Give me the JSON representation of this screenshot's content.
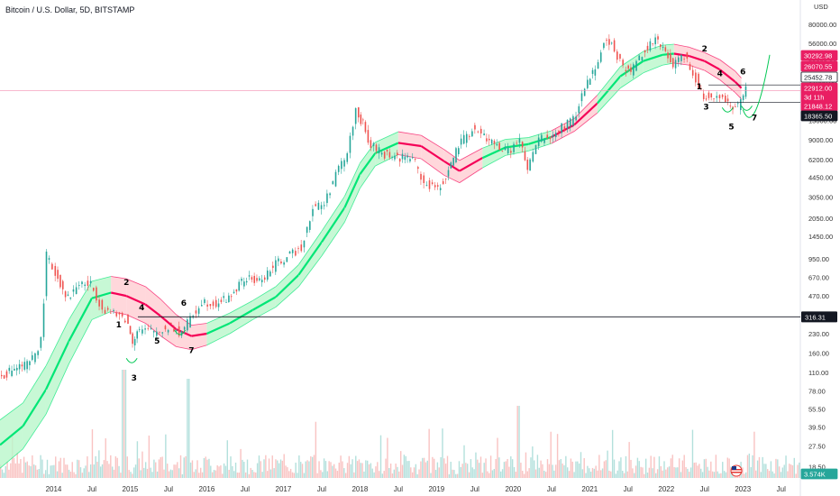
{
  "header": {
    "title": "Bitcoin / U.S. Dollar, 5D, BITSTAMP"
  },
  "colors": {
    "up_candle": "#26a69a",
    "down_candle": "#ef5350",
    "band_green": "#00e676",
    "band_red": "#f50057",
    "band_green_fill": "#b9f6ca",
    "band_red_fill": "#ffcdd2",
    "price_badge_red": "#e91e63",
    "price_badge_black": "#131722",
    "volume_badge": "#26a69a",
    "last_price_line": "#f48fb1"
  },
  "chart_data": {
    "type": "line",
    "symbol": "BTCUSD",
    "exchange": "BITSTAMP",
    "interval": "5D",
    "y_scale": "log",
    "y_unit": "USD",
    "y_ticks": [
      "80000.00",
      "56000.00",
      "39000.00",
      "27000.00",
      "13000.00",
      "9000.00",
      "6200.00",
      "4450.00",
      "3050.00",
      "2050.00",
      "1450.00",
      "950.00",
      "670.00",
      "470.00",
      "230.00",
      "160.00",
      "110.00",
      "78.00",
      "55.50",
      "39.50",
      "27.50",
      "18.50"
    ],
    "x_ticks": [
      "2014",
      "Jul",
      "2015",
      "Jul",
      "2016",
      "Jul",
      "2017",
      "Jul",
      "2018",
      "Jul",
      "2019",
      "Jul",
      "2020",
      "Jul",
      "2021",
      "Jul",
      "2022",
      "Jul",
      "2023",
      "Jul"
    ],
    "price_series": {
      "name": "BTCUSD",
      "x": [
        2013.3,
        2013.5,
        2013.7,
        2013.85,
        2013.92,
        2014.0,
        2014.1,
        2014.2,
        2014.35,
        2014.5,
        2014.65,
        2014.8,
        2014.95,
        2015.04,
        2015.1,
        2015.25,
        2015.4,
        2015.55,
        2015.65,
        2015.8,
        2015.95,
        2016.1,
        2016.3,
        2016.5,
        2016.7,
        2016.95,
        2017.1,
        2017.25,
        2017.4,
        2017.55,
        2017.7,
        2017.85,
        2017.96,
        2018.05,
        2018.12,
        2018.3,
        2018.5,
        2018.7,
        2018.85,
        2018.96,
        2019.1,
        2019.3,
        2019.48,
        2019.6,
        2019.8,
        2019.95,
        2020.1,
        2020.2,
        2020.35,
        2020.5,
        2020.65,
        2020.8,
        2020.95,
        2021.05,
        2021.2,
        2021.3,
        2021.45,
        2021.55,
        2021.7,
        2021.87,
        2022.0,
        2022.1,
        2022.25,
        2022.4,
        2022.5,
        2022.6,
        2022.75,
        2022.88,
        2022.95,
        2023.05
      ],
      "y": [
        100,
        120,
        130,
        200,
        1000,
        800,
        600,
        450,
        600,
        580,
        380,
        330,
        310,
        200,
        250,
        240,
        240,
        270,
        230,
        300,
        430,
        410,
        450,
        650,
        620,
        900,
        1000,
        1200,
        2500,
        2700,
        4700,
        7000,
        16000,
        12000,
        8500,
        7000,
        6500,
        6500,
        4000,
        3600,
        4000,
        8000,
        11000,
        10000,
        8000,
        7200,
        9000,
        5000,
        9300,
        9200,
        11500,
        13000,
        24000,
        33000,
        55000,
        58000,
        35000,
        33000,
        47000,
        60000,
        46000,
        38000,
        45000,
        29000,
        20000,
        21000,
        19500,
        17000,
        16800,
        22900
      ]
    },
    "band": {
      "x": [
        2013.3,
        2013.6,
        2013.9,
        2014.2,
        2014.5,
        2014.75,
        2014.95,
        2015.2,
        2015.4,
        2015.6,
        2015.8,
        2016.0,
        2016.3,
        2016.6,
        2016.9,
        2017.2,
        2017.5,
        2017.8,
        2018.0,
        2018.2,
        2018.5,
        2018.8,
        2019.1,
        2019.3,
        2019.6,
        2019.9,
        2020.2,
        2020.5,
        2020.8,
        2021.1,
        2021.4,
        2021.7,
        2021.95,
        2022.1,
        2022.3,
        2022.5,
        2022.7,
        2022.9,
        2022.98
      ],
      "mid": [
        28,
        40,
        80,
        200,
        450,
        500,
        470,
        400,
        320,
        250,
        220,
        230,
        280,
        360,
        460,
        700,
        1300,
        2500,
        4700,
        7000,
        8500,
        8000,
        6000,
        5000,
        6400,
        7800,
        8300,
        9500,
        12000,
        18000,
        30000,
        40000,
        45000,
        46000,
        44000,
        40000,
        34000,
        27000,
        24000
      ],
      "lower": [
        18,
        26,
        50,
        130,
        300,
        350,
        330,
        280,
        220,
        180,
        170,
        185,
        230,
        300,
        380,
        560,
        1000,
        1900,
        3600,
        5500,
        6800,
        6300,
        4600,
        4000,
        5300,
        6700,
        7300,
        8400,
        10600,
        15000,
        24000,
        32000,
        37000,
        38500,
        37000,
        33500,
        28000,
        22000,
        19500
      ],
      "upper": [
        45,
        62,
        125,
        300,
        620,
        680,
        650,
        560,
        440,
        330,
        270,
        280,
        340,
        430,
        560,
        850,
        1600,
        3100,
        5800,
        8600,
        10500,
        9800,
        7500,
        6100,
        7700,
        9100,
        9400,
        10700,
        13500,
        21000,
        36000,
        48000,
        54000,
        55000,
        52000,
        47000,
        41000,
        33000,
        29000
      ],
      "segment_colors": [
        "green",
        "green",
        "green",
        "green",
        "green",
        "red",
        "red",
        "red",
        "red",
        "red",
        "red",
        "green",
        "green",
        "green",
        "green",
        "green",
        "green",
        "green",
        "green",
        "green",
        "red",
        "red",
        "red",
        "red",
        "green",
        "green",
        "green",
        "red",
        "red",
        "green",
        "green",
        "green",
        "green",
        "red",
        "red",
        "red",
        "red",
        "red",
        "red"
      ]
    },
    "horizontal_levels": [
      {
        "label": "316.31",
        "value": 316.31,
        "color": "#131722"
      }
    ],
    "price_badges": [
      {
        "label": "30292.98",
        "value": 30292.98,
        "color": "#e91e63"
      },
      {
        "label": "26070.55",
        "value": 26070.55,
        "color": "#e91e63"
      },
      {
        "label": "25452.78",
        "value": 25452.78,
        "color": "#131722",
        "outlined": true
      },
      {
        "label": "22912.00",
        "value": 22912.0,
        "color": "#e91e63"
      },
      {
        "label": "3d 11h",
        "value": 21500,
        "color": "#e91e63"
      },
      {
        "label": "21848.12",
        "value": 20300,
        "color": "#e91e63"
      },
      {
        "label": "18365.50",
        "value": 18365.5,
        "color": "#131722"
      },
      {
        "label": "3.574K",
        "value": 0,
        "color": "#26a69a"
      }
    ],
    "wave_labels": [
      {
        "text": "1",
        "x": 2014.85,
        "y": 260
      },
      {
        "text": "2",
        "x": 2014.95,
        "y": 580
      },
      {
        "text": "3",
        "x": 2015.05,
        "y": 95
      },
      {
        "text": "4",
        "x": 2015.15,
        "y": 360
      },
      {
        "text": "5",
        "x": 2015.35,
        "y": 190
      },
      {
        "text": "6",
        "x": 2015.7,
        "y": 390
      },
      {
        "text": "7",
        "x": 2015.8,
        "y": 160
      },
      {
        "text": "1",
        "x": 2022.43,
        "y": 23500
      },
      {
        "text": "2",
        "x": 2022.5,
        "y": 48000
      },
      {
        "text": "3",
        "x": 2022.52,
        "y": 16000
      },
      {
        "text": "4",
        "x": 2022.7,
        "y": 30000
      },
      {
        "text": "5",
        "x": 2022.85,
        "y": 11000
      },
      {
        "text": "6",
        "x": 2023.0,
        "y": 31000
      },
      {
        "text": "7",
        "x": 2023.15,
        "y": 13000
      }
    ],
    "currency_label": "USD"
  }
}
